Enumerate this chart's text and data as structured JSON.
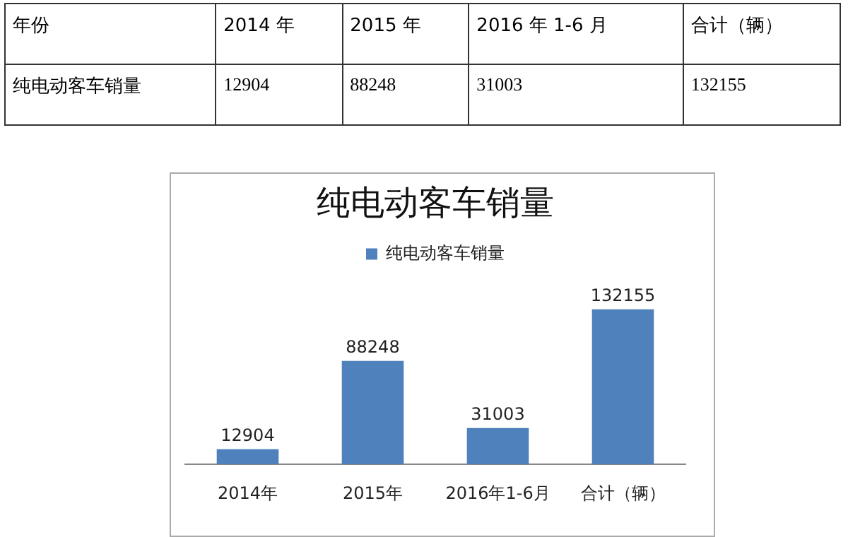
{
  "chart_data": {
    "type": "bar",
    "title": "纯电动客车销量",
    "categories": [
      "2014年",
      "2015年",
      "2016年1-6月",
      "合计（辆）"
    ],
    "series": [
      {
        "name": "纯电动客车销量",
        "color": "#4f81bd",
        "values": [
          12904,
          88248,
          31003,
          132155
        ]
      }
    ],
    "data_labels": true,
    "legend": "top",
    "grid": false,
    "annotations": [
      "年份",
      "2014 年",
      "2015 年",
      "2016 年 1-6 月",
      "合计（辆）",
      "纯电动客车销量",
      "12904",
      "88248",
      "31003",
      "132155"
    ]
  }
}
